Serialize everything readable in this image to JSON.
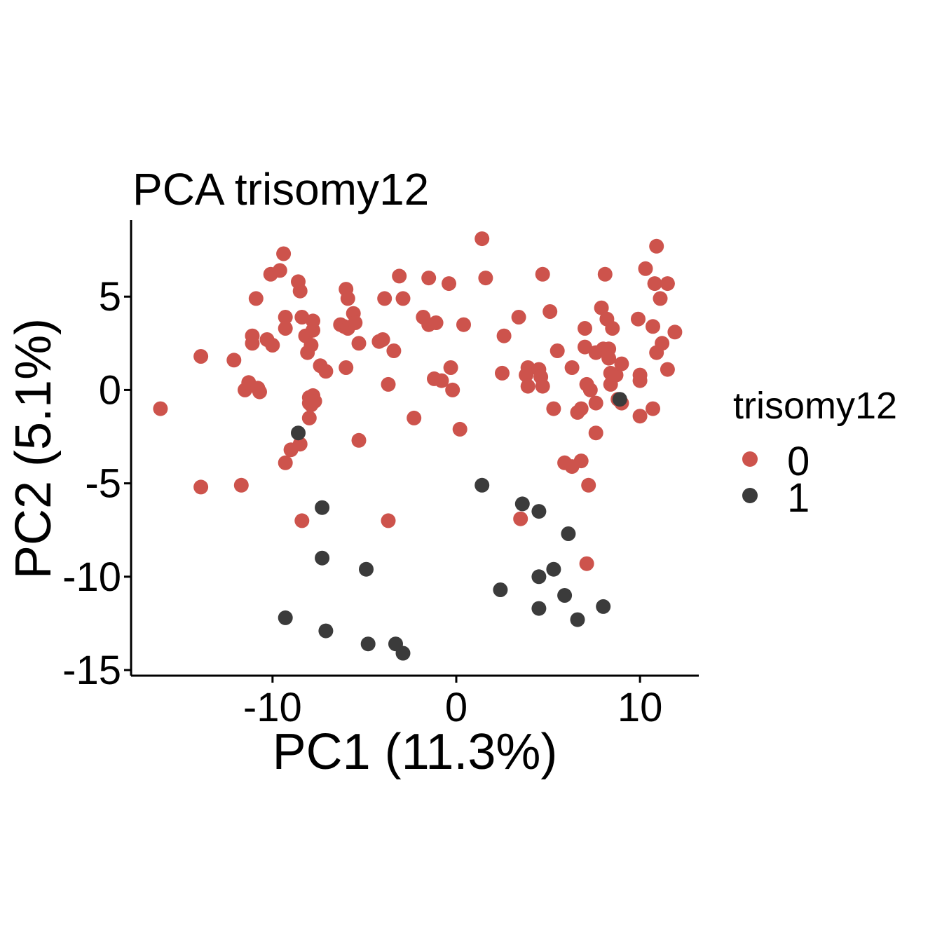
{
  "chart_data": {
    "type": "scatter",
    "title": "PCA trisomy12",
    "xlabel": "PC1 (11.3%)",
    "ylabel": "PC2 (5.1%)",
    "xlim": [
      -17.7,
      13.2
    ],
    "ylim": [
      -15.3,
      9.1
    ],
    "xticks": [
      -10,
      0,
      10
    ],
    "yticks": [
      -15,
      -10,
      -5,
      0,
      5
    ],
    "grid": false,
    "legend": {
      "title": "trisomy12",
      "position": "right",
      "entries": [
        {
          "label": "0",
          "color": "#cd534c"
        },
        {
          "label": "1",
          "color": "#3b3b3b"
        }
      ]
    },
    "series": [
      {
        "name": "0",
        "color": "#cd534c",
        "points": [
          [
            -16.1,
            -1.0
          ],
          [
            -13.9,
            1.8
          ],
          [
            -13.9,
            -5.2
          ],
          [
            -12.1,
            1.6
          ],
          [
            -11.7,
            -5.1
          ],
          [
            -11.5,
            0.0
          ],
          [
            -11.3,
            0.4
          ],
          [
            -11.1,
            2.9
          ],
          [
            -11.1,
            2.5
          ],
          [
            -10.9,
            4.9
          ],
          [
            -10.8,
            0.1
          ],
          [
            -10.7,
            -0.1
          ],
          [
            -10.3,
            2.7
          ],
          [
            -10.0,
            2.4
          ],
          [
            -10.1,
            6.2
          ],
          [
            -9.6,
            6.4
          ],
          [
            -9.4,
            7.3
          ],
          [
            -9.3,
            3.9
          ],
          [
            -9.3,
            3.3
          ],
          [
            -9.0,
            -3.2
          ],
          [
            -9.3,
            -3.9
          ],
          [
            -8.5,
            -2.9
          ],
          [
            -8.6,
            5.8
          ],
          [
            -8.5,
            5.3
          ],
          [
            -8.4,
            3.9
          ],
          [
            -8.2,
            2.9
          ],
          [
            -8.1,
            2.0
          ],
          [
            -7.9,
            2.4
          ],
          [
            -7.8,
            3.2
          ],
          [
            -7.8,
            3.7
          ],
          [
            -8.0,
            -0.7
          ],
          [
            -7.8,
            -0.3
          ],
          [
            -8.0,
            -0.4
          ],
          [
            -7.7,
            -0.6
          ],
          [
            -7.9,
            -0.8
          ],
          [
            -8.0,
            -1.5
          ],
          [
            -7.4,
            1.3
          ],
          [
            -7.1,
            1.0
          ],
          [
            -8.4,
            -7.0
          ],
          [
            -6.3,
            3.5
          ],
          [
            -6.1,
            3.4
          ],
          [
            -5.9,
            3.3
          ],
          [
            -6.0,
            5.4
          ],
          [
            -5.9,
            4.9
          ],
          [
            -5.6,
            4.1
          ],
          [
            -5.5,
            3.6
          ],
          [
            -5.3,
            2.5
          ],
          [
            -6.0,
            1.2
          ],
          [
            -5.3,
            -2.7
          ],
          [
            -4.2,
            2.6
          ],
          [
            -4.0,
            2.7
          ],
          [
            -3.9,
            4.9
          ],
          [
            -3.7,
            0.3
          ],
          [
            -3.4,
            2.1
          ],
          [
            -3.1,
            6.1
          ],
          [
            -2.9,
            4.9
          ],
          [
            -3.7,
            -7.0
          ],
          [
            -2.3,
            -1.5
          ],
          [
            -1.8,
            3.9
          ],
          [
            -1.5,
            3.5
          ],
          [
            -1.5,
            6.0
          ],
          [
            -1.1,
            3.6
          ],
          [
            -1.2,
            0.6
          ],
          [
            -0.8,
            0.5
          ],
          [
            -0.4,
            5.7
          ],
          [
            -0.3,
            1.2
          ],
          [
            -0.2,
            0.0
          ],
          [
            0.2,
            -2.1
          ],
          [
            0.4,
            3.5
          ],
          [
            1.4,
            8.1
          ],
          [
            1.6,
            6.0
          ],
          [
            2.5,
            0.9
          ],
          [
            2.6,
            2.9
          ],
          [
            3.4,
            3.9
          ],
          [
            3.9,
            1.2
          ],
          [
            3.8,
            0.8
          ],
          [
            3.9,
            0.2
          ],
          [
            4.5,
            1.1
          ],
          [
            4.6,
            0.7
          ],
          [
            4.7,
            0.2
          ],
          [
            4.7,
            6.2
          ],
          [
            5.1,
            4.2
          ],
          [
            5.3,
            -1.0
          ],
          [
            5.5,
            2.1
          ],
          [
            5.9,
            -3.9
          ],
          [
            6.3,
            -4.1
          ],
          [
            6.3,
            1.2
          ],
          [
            6.6,
            -1.2
          ],
          [
            6.8,
            -3.8
          ],
          [
            6.8,
            -1.0
          ],
          [
            7.0,
            3.3
          ],
          [
            7.0,
            2.3
          ],
          [
            7.1,
            0.3
          ],
          [
            7.2,
            -5.1
          ],
          [
            7.3,
            0.0
          ],
          [
            7.6,
            2.0
          ],
          [
            7.6,
            -0.7
          ],
          [
            7.6,
            -2.3
          ],
          [
            7.9,
            4.4
          ],
          [
            8.1,
            6.2
          ],
          [
            8.0,
            2.2
          ],
          [
            8.2,
            3.8
          ],
          [
            8.3,
            2.2
          ],
          [
            8.3,
            1.7
          ],
          [
            8.4,
            0.9
          ],
          [
            8.4,
            0.3
          ],
          [
            8.5,
            3.3
          ],
          [
            8.7,
            0.8
          ],
          [
            8.8,
            -0.5
          ],
          [
            9.0,
            1.4
          ],
          [
            9.0,
            -0.7
          ],
          [
            9.9,
            3.8
          ],
          [
            10.0,
            0.8
          ],
          [
            10.0,
            0.5
          ],
          [
            10.0,
            -1.4
          ],
          [
            10.3,
            6.5
          ],
          [
            10.7,
            3.4
          ],
          [
            10.7,
            -1.0
          ],
          [
            10.9,
            7.7
          ],
          [
            10.8,
            5.7
          ],
          [
            10.9,
            2.0
          ],
          [
            11.1,
            4.9
          ],
          [
            11.2,
            2.5
          ],
          [
            11.5,
            5.7
          ],
          [
            11.5,
            1.1
          ],
          [
            11.9,
            3.1
          ],
          [
            3.5,
            -6.9
          ],
          [
            7.1,
            -9.3
          ]
        ]
      },
      {
        "name": "1",
        "color": "#3b3b3b",
        "points": [
          [
            -8.6,
            -2.3
          ],
          [
            -7.3,
            -6.3
          ],
          [
            -7.3,
            -9.0
          ],
          [
            -9.3,
            -12.2
          ],
          [
            -7.1,
            -12.9
          ],
          [
            -4.9,
            -9.6
          ],
          [
            -4.8,
            -13.6
          ],
          [
            -3.3,
            -13.6
          ],
          [
            -2.9,
            -14.1
          ],
          [
            1.4,
            -5.1
          ],
          [
            3.6,
            -6.1
          ],
          [
            4.5,
            -6.5
          ],
          [
            6.1,
            -7.7
          ],
          [
            2.4,
            -10.7
          ],
          [
            4.5,
            -10.0
          ],
          [
            5.3,
            -9.6
          ],
          [
            4.5,
            -11.7
          ],
          [
            5.9,
            -11.0
          ],
          [
            6.6,
            -12.3
          ],
          [
            8.0,
            -11.6
          ],
          [
            8.9,
            -0.5
          ]
        ]
      }
    ]
  }
}
